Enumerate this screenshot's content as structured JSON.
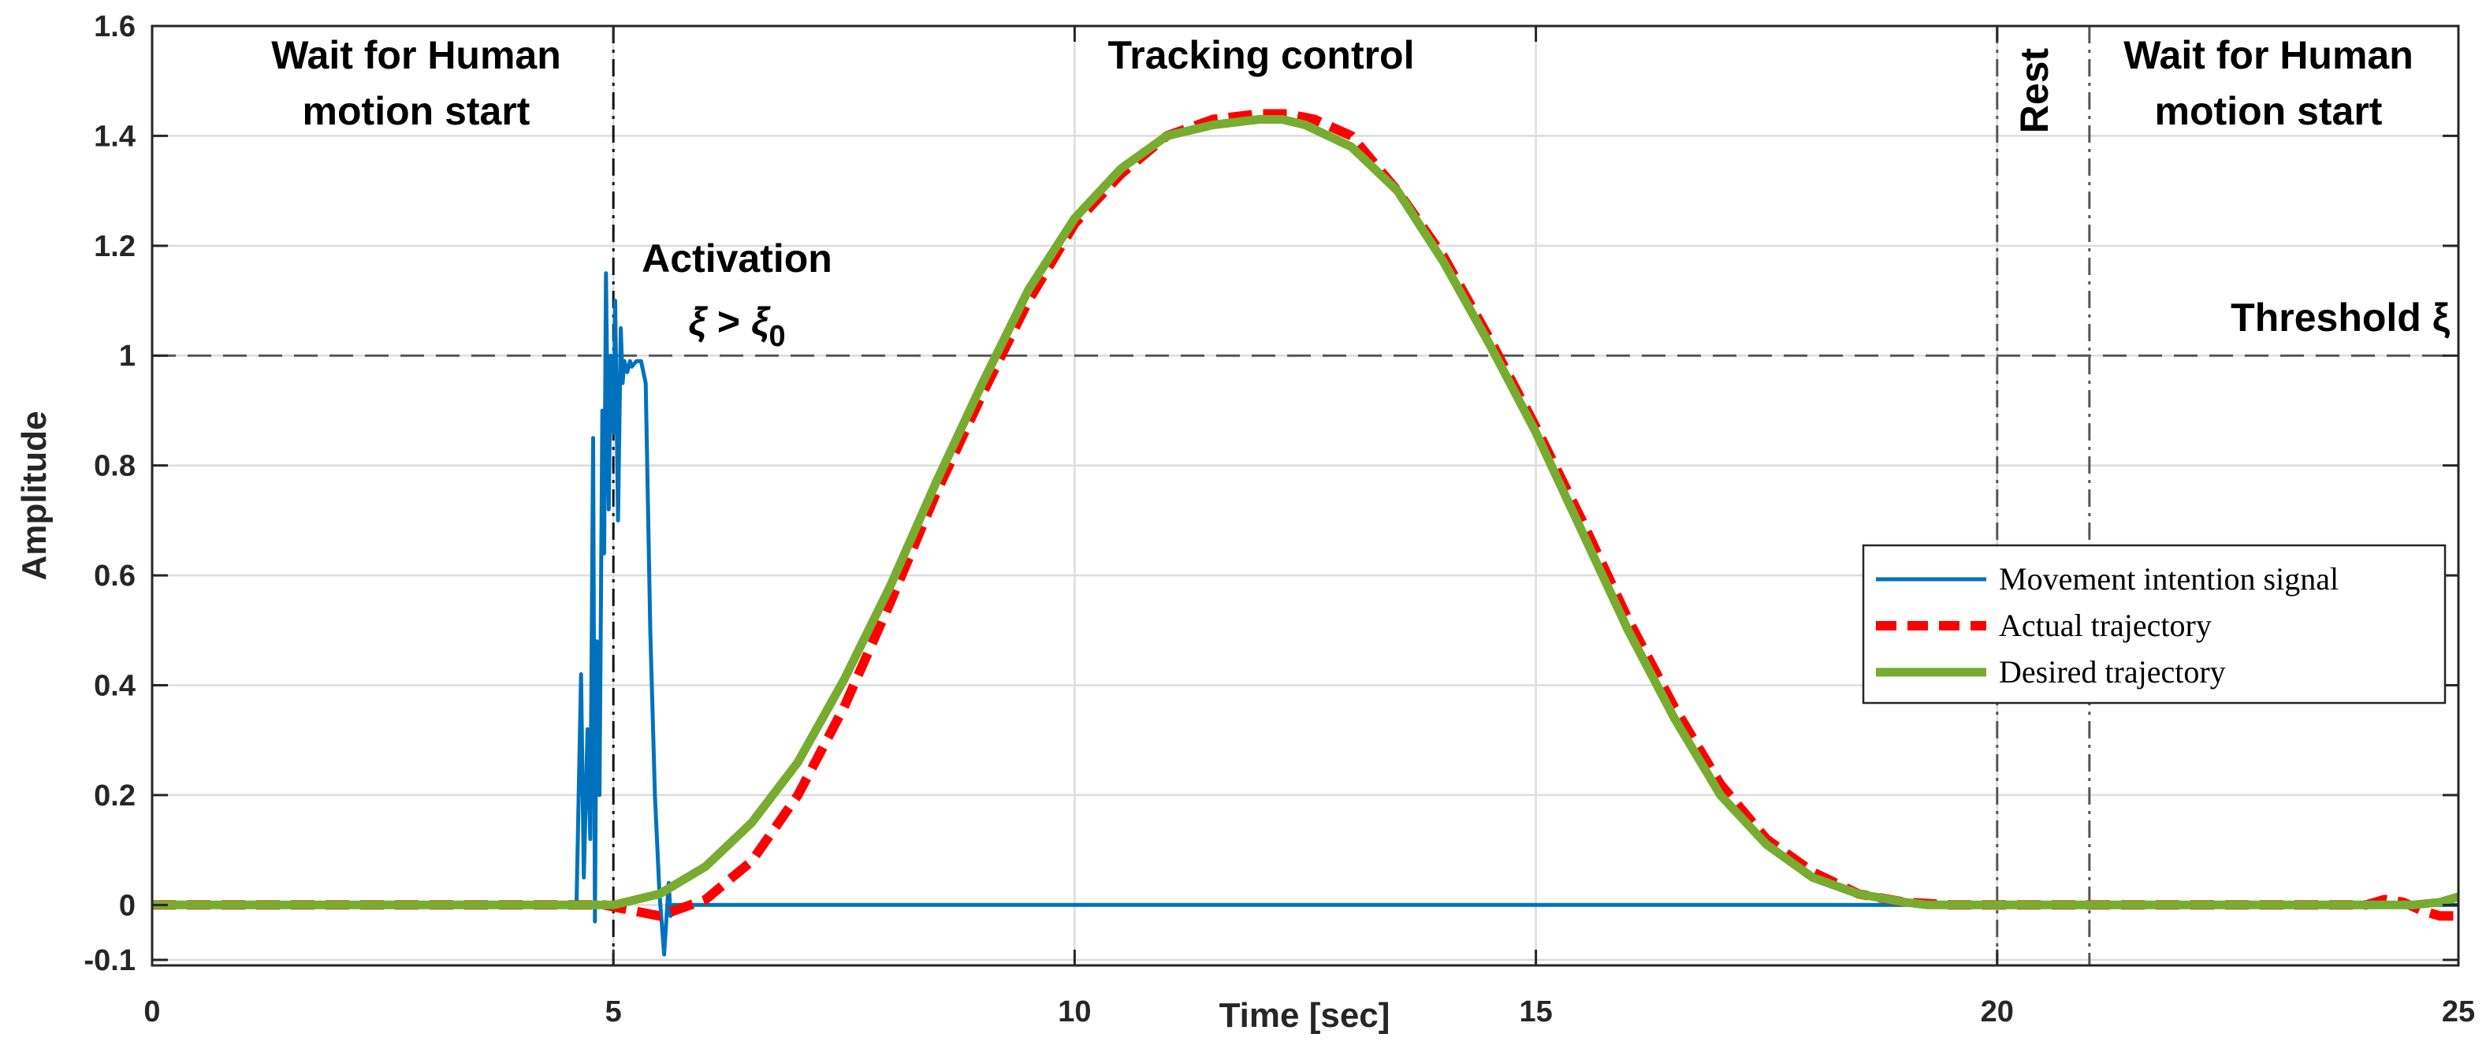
{
  "chart_data": {
    "type": "line",
    "title": "",
    "xlabel": "Time [sec]",
    "ylabel": "Amplitude",
    "xlim": [
      0,
      25
    ],
    "ylim": [
      -0.11,
      1.6
    ],
    "xticks": [
      0,
      5,
      10,
      15,
      20,
      25
    ],
    "xtick_labels": [
      "0",
      "5",
      "10",
      "15",
      "20",
      "25"
    ],
    "yticks": [
      -0.1,
      0,
      0.2,
      0.4,
      0.6,
      0.8,
      1,
      1.2,
      1.4,
      1.6
    ],
    "ytick_labels": [
      "-0.1",
      "0",
      "0.2",
      "0.4",
      "0.6",
      "0.8",
      "1",
      "1.2",
      "1.4",
      "1.6"
    ],
    "grid": true,
    "legend_position": "right",
    "threshold": {
      "value": 1,
      "label": "Threshold ξ"
    },
    "phase_lines": [
      5,
      20,
      21
    ],
    "annotations": {
      "phase1_line1": "Wait for Human",
      "phase1_line2": "motion start",
      "tracking": "Tracking control",
      "rest": "Rest",
      "phase3_line1": "Wait for Human",
      "phase3_line2": "motion start",
      "activation_line1": "Activation",
      "activation_xi": "ξ",
      "activation_gt": ">",
      "activation_xi0": "ξ",
      "activation_sub": "0"
    },
    "series": [
      {
        "name": "Movement intention signal",
        "color": "#0072BD",
        "style": "solid",
        "x": [
          0,
          4.6,
          4.65,
          4.68,
          4.72,
          4.75,
          4.78,
          4.8,
          4.82,
          4.85,
          4.88,
          4.9,
          4.92,
          4.95,
          4.97,
          5.0,
          5.02,
          5.05,
          5.08,
          5.1,
          5.12,
          5.15,
          5.18,
          5.2,
          5.25,
          5.3,
          5.35,
          5.4,
          5.45,
          5.5,
          5.55,
          5.6,
          5.62,
          5.65,
          5.7,
          25
        ],
        "y": [
          0,
          0,
          0.42,
          0.05,
          0.32,
          0.12,
          0.85,
          -0.03,
          0.48,
          0.2,
          0.9,
          0.64,
          1.15,
          0.72,
          1.0,
          0.86,
          1.1,
          0.7,
          1.05,
          0.95,
          0.99,
          0.97,
          0.99,
          0.98,
          0.99,
          0.99,
          0.95,
          0.5,
          0.2,
          0.02,
          -0.09,
          0.04,
          -0.02,
          0.0,
          0.0,
          0
        ]
      },
      {
        "name": "Actual trajectory",
        "color": "#FF0000",
        "style": "dashed",
        "x": [
          0,
          4.9,
          5.2,
          5.5,
          6,
          6.5,
          7,
          7.5,
          8,
          8.5,
          9,
          9.5,
          10,
          10.5,
          11,
          11.5,
          12,
          12.3,
          12.6,
          13,
          13.5,
          14,
          14.5,
          15,
          15.5,
          16,
          16.5,
          17,
          17.5,
          18,
          18.5,
          19,
          19.5,
          20,
          21,
          22,
          23,
          24,
          24.2,
          24.4,
          24.6,
          24.8,
          25
        ],
        "y": [
          0,
          0,
          -0.01,
          -0.02,
          0.01,
          0.08,
          0.2,
          0.36,
          0.55,
          0.75,
          0.93,
          1.1,
          1.24,
          1.33,
          1.4,
          1.43,
          1.44,
          1.44,
          1.43,
          1.4,
          1.3,
          1.18,
          1.03,
          0.87,
          0.7,
          0.52,
          0.36,
          0.22,
          0.12,
          0.06,
          0.02,
          0.005,
          0,
          0,
          0,
          0,
          0,
          0,
          0.01,
          0.005,
          -0.01,
          -0.02,
          -0.02
        ]
      },
      {
        "name": "Desired trajectory",
        "color": "#77AC30",
        "style": "solid",
        "x": [
          0,
          5,
          5.5,
          6,
          6.5,
          7,
          7.5,
          8,
          8.5,
          9,
          9.5,
          10,
          10.5,
          11,
          11.5,
          12,
          12.25,
          12.5,
          13,
          13.5,
          14,
          14.5,
          15,
          15.5,
          16,
          16.5,
          17,
          17.5,
          18,
          18.5,
          19,
          19.25,
          20,
          21,
          22,
          23,
          24,
          24.5,
          24.8,
          25
        ],
        "y": [
          0,
          0,
          0.02,
          0.07,
          0.15,
          0.26,
          0.41,
          0.58,
          0.77,
          0.95,
          1.12,
          1.25,
          1.34,
          1.4,
          1.42,
          1.43,
          1.43,
          1.42,
          1.38,
          1.3,
          1.17,
          1.02,
          0.86,
          0.68,
          0.5,
          0.34,
          0.2,
          0.11,
          0.05,
          0.02,
          0.005,
          0,
          0,
          0,
          0,
          0,
          0,
          0,
          0.005,
          0.015
        ]
      }
    ]
  }
}
